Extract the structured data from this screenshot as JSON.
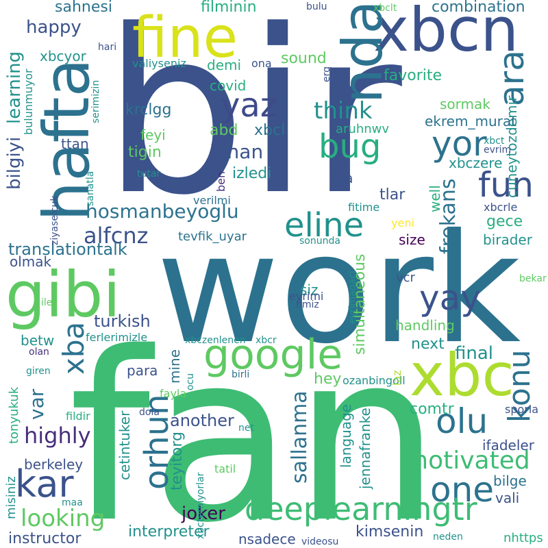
{
  "cloud": {
    "background": "#ffffff",
    "palette": [
      "#3b528b",
      "#2c728e",
      "#21918c",
      "#28ae80",
      "#5ec962",
      "#addc30",
      "#fde725",
      "#440154",
      "#472d7b"
    ],
    "words": [
      {
        "text": "bir",
        "color": "#3b528b"
      },
      {
        "text": "work",
        "color": "#2c728e"
      },
      {
        "text": "fan",
        "color": "#3ebc74"
      },
      {
        "text": "fine",
        "color": "#d9e21a"
      },
      {
        "text": "xbcn",
        "color": "#3b528b"
      },
      {
        "text": "hafta",
        "color": "#2c728e"
      },
      {
        "text": "gibi",
        "color": "#5ec962"
      },
      {
        "text": "nda",
        "color": "#2c728e"
      },
      {
        "text": "xbc",
        "color": "#addc30"
      },
      {
        "text": "google",
        "color": "#5ec962"
      },
      {
        "text": "eline",
        "color": "#21918c"
      },
      {
        "text": "yaz",
        "color": "#3e4a89"
      },
      {
        "text": "bug",
        "color": "#28ae80"
      },
      {
        "text": "yor",
        "color": "#2c728e"
      },
      {
        "text": "fun",
        "color": "#3b528b"
      },
      {
        "text": "ara",
        "color": "#2c728e"
      },
      {
        "text": "yay",
        "color": "#3b528b"
      },
      {
        "text": "olu",
        "color": "#2c728e"
      },
      {
        "text": "one",
        "color": "#2c728e"
      },
      {
        "text": "kar",
        "color": "#3b528b"
      },
      {
        "text": "xba",
        "color": "#2c728e"
      },
      {
        "text": "konu",
        "color": "#2c728e"
      },
      {
        "text": "deeplearningtr",
        "color": "#3ebc74"
      },
      {
        "text": "orhun",
        "color": "#2c728e"
      },
      {
        "text": "learning",
        "color": "#21918c"
      },
      {
        "text": "bilgiyi",
        "color": "#3b528b"
      },
      {
        "text": "hosmanbeyoglu",
        "color": "#2c728e"
      },
      {
        "text": "happy",
        "color": "#3b528b"
      },
      {
        "text": "sahnesi",
        "color": "#2c728e"
      },
      {
        "text": "filminin",
        "color": "#28ae80"
      },
      {
        "text": "combination",
        "color": "#2c728e"
      },
      {
        "text": "think",
        "color": "#21918c"
      },
      {
        "text": "binan",
        "color": "#3b528b"
      },
      {
        "text": "alfcnz",
        "color": "#3b528b"
      },
      {
        "text": "frekans",
        "color": "#2c728e"
      },
      {
        "text": "cuneytozdemir",
        "color": "#21918c"
      },
      {
        "text": "sallanma",
        "color": "#2c728e"
      },
      {
        "text": "motivated",
        "color": "#3ebc74"
      },
      {
        "text": "highly",
        "color": "#472d7b"
      },
      {
        "text": "looking",
        "color": "#5ec962"
      },
      {
        "text": "joker",
        "color": "#440154"
      },
      {
        "text": "translationtalk",
        "color": "#2c728e"
      },
      {
        "text": "turkish",
        "color": "#3b528b"
      },
      {
        "text": "simultaneous",
        "color": "#5ec962"
      },
      {
        "text": "var",
        "color": "#2c728e"
      },
      {
        "text": "xbcyor",
        "color": "#21918c"
      },
      {
        "text": "favorite",
        "color": "#28ae80"
      },
      {
        "text": "sound",
        "color": "#5ec962"
      },
      {
        "text": "krclgg",
        "color": "#2c728e"
      },
      {
        "text": "abd",
        "color": "#5ec962"
      },
      {
        "text": "xbcl",
        "color": "#2c728e"
      },
      {
        "text": "ekrem_murat",
        "color": "#2c728e"
      },
      {
        "text": "sormak",
        "color": "#5ec962"
      },
      {
        "text": "covid",
        "color": "#28ae80"
      },
      {
        "text": "demi",
        "color": "#28ae80"
      },
      {
        "text": "tigin",
        "color": "#5ec962"
      },
      {
        "text": "feyi",
        "color": "#5ec962"
      },
      {
        "text": "ttan",
        "color": "#3b528b"
      },
      {
        "text": "aruhnwv",
        "color": "#28ae80"
      },
      {
        "text": "xbczere",
        "color": "#21918c"
      },
      {
        "text": "izledi",
        "color": "#21918c"
      },
      {
        "text": "ben",
        "color": "#472d7b"
      },
      {
        "text": "lda",
        "color": "#3b528b"
      },
      {
        "text": "tlar",
        "color": "#3b528b"
      },
      {
        "text": "tevfik_uyar",
        "color": "#2c728e"
      },
      {
        "text": "gece",
        "color": "#28ae80"
      },
      {
        "text": "birader",
        "color": "#21918c"
      },
      {
        "text": "size",
        "color": "#440154"
      },
      {
        "text": "olmak",
        "color": "#3b528b"
      },
      {
        "text": "xbcrle",
        "color": "#3b528b"
      },
      {
        "text": "well",
        "color": "#28ae80"
      },
      {
        "text": "verilmi",
        "color": "#2c728e"
      },
      {
        "text": "fitime",
        "color": "#21918c"
      },
      {
        "text": "siz",
        "color": "#21918c"
      },
      {
        "text": "vcr",
        "color": "#3b528b"
      },
      {
        "text": "handling",
        "color": "#5ec962"
      },
      {
        "text": "next",
        "color": "#21918c"
      },
      {
        "text": "final",
        "color": "#21918c"
      },
      {
        "text": "betw",
        "color": "#21918c"
      },
      {
        "text": "ferlerimizle",
        "color": "#21918c"
      },
      {
        "text": "para",
        "color": "#3b528b"
      },
      {
        "text": "mine",
        "color": "#2c728e"
      },
      {
        "text": "cetintuker",
        "color": "#21918c"
      },
      {
        "text": "another",
        "color": "#3b528b"
      },
      {
        "text": "teyitorg",
        "color": "#21918c"
      },
      {
        "text": "language",
        "color": "#21918c"
      },
      {
        "text": "jennafranke",
        "color": "#21918c"
      },
      {
        "text": "hey",
        "color": "#5ec962"
      },
      {
        "text": "comtr",
        "color": "#28ae80"
      },
      {
        "text": "ifadeler",
        "color": "#3b528b"
      },
      {
        "text": "bilge",
        "color": "#2c728e"
      },
      {
        "text": "vali",
        "color": "#3b528b"
      },
      {
        "text": "berkeley",
        "color": "#3b528b"
      },
      {
        "text": "interpreter",
        "color": "#21918c"
      },
      {
        "text": "kimsenin",
        "color": "#3b528b"
      },
      {
        "text": "nsadece",
        "color": "#3b528b"
      },
      {
        "text": "instructor",
        "color": "#3b528b"
      },
      {
        "text": "nhttps",
        "color": "#28ae80"
      },
      {
        "text": "misiniz",
        "color": "#21918c"
      },
      {
        "text": "tonyukuk",
        "color": "#28ae80"
      },
      {
        "text": "fayla",
        "color": "#5ec962"
      },
      {
        "text": "fildir",
        "color": "#28ae80"
      },
      {
        "text": "sporla",
        "color": "#3b528b"
      },
      {
        "text": "dola",
        "color": "#3b528b"
      },
      {
        "text": "net",
        "color": "#21918c"
      },
      {
        "text": "tatil",
        "color": "#5ec962"
      },
      {
        "text": "ozanbingoll",
        "color": "#21918c"
      },
      {
        "text": "laz",
        "color": "#addc30"
      },
      {
        "text": "birli",
        "color": "#2c728e"
      },
      {
        "text": "ocu",
        "color": "#21918c"
      },
      {
        "text": "giren",
        "color": "#21918c"
      },
      {
        "text": "olan",
        "color": "#472d7b"
      },
      {
        "text": "xbczenlenen",
        "color": "#21918c"
      },
      {
        "text": "xbcr",
        "color": "#21918c"
      },
      {
        "text": "ile",
        "color": "#5ec962"
      },
      {
        "text": "evrimi",
        "color": "#3b528b"
      },
      {
        "text": "fimiz",
        "color": "#3b528b"
      },
      {
        "text": "evrimagaci",
        "color": "#21918c"
      },
      {
        "text": "bekar",
        "color": "#5ec962"
      },
      {
        "text": "yeni",
        "color": "#fde725"
      },
      {
        "text": "sonunda",
        "color": "#21918c"
      },
      {
        "text": "ziyaselcuk",
        "color": "#3b528b"
      },
      {
        "text": "sanatla",
        "color": "#21918c"
      },
      {
        "text": "tutar",
        "color": "#21918c"
      },
      {
        "text": "evrim",
        "color": "#3b528b"
      },
      {
        "text": "xbct",
        "color": "#21918c"
      },
      {
        "text": "serimizin",
        "color": "#21918c"
      },
      {
        "text": "bulunmuyor",
        "color": "#21918c"
      },
      {
        "text": "hari",
        "color": "#3b528b"
      },
      {
        "text": "valiyseniz",
        "color": "#21918c"
      },
      {
        "text": "ona",
        "color": "#3b528b"
      },
      {
        "text": "erq",
        "color": "#3b528b"
      },
      {
        "text": "bulu",
        "color": "#3b528b"
      },
      {
        "text": "xbclt",
        "color": "#5ec962"
      },
      {
        "text": "xbctemiyorlar",
        "color": "#21918c"
      },
      {
        "text": "maa",
        "color": "#21918c"
      },
      {
        "text": "videosu",
        "color": "#3b528b"
      },
      {
        "text": "neden",
        "color": "#21918c"
      }
    ]
  }
}
